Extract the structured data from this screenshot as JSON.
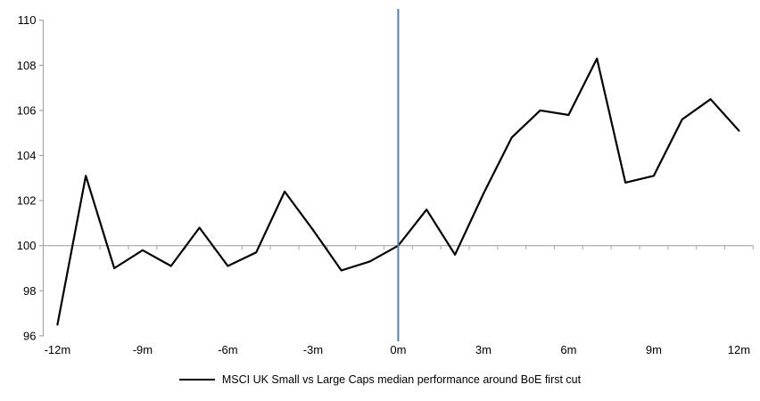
{
  "chart_data": {
    "type": "line",
    "title": "",
    "legend_label": "MSCI UK Small vs Large Caps median performance around BoE first cut",
    "legend_position": "bottom",
    "grid": false,
    "x": [
      -12,
      -11,
      -10,
      -9,
      -8,
      -7,
      -6,
      -5,
      -4,
      -3,
      -2,
      -1,
      0,
      1,
      2,
      3,
      4,
      5,
      6,
      7,
      8,
      9,
      10,
      11,
      12
    ],
    "values": [
      96.5,
      103.1,
      99.0,
      99.8,
      99.1,
      100.8,
      99.1,
      99.7,
      102.4,
      100.7,
      98.9,
      99.3,
      100.0,
      101.6,
      99.6,
      102.3,
      104.8,
      106.0,
      105.8,
      108.3,
      102.8,
      103.1,
      105.6,
      106.5,
      105.1
    ],
    "xlim": [
      -12,
      12
    ],
    "ylim": [
      96,
      110
    ],
    "y_ticks": [
      96,
      98,
      100,
      102,
      104,
      106,
      108,
      110
    ],
    "x_tick_labels": [
      {
        "month": -12,
        "label": "-12m"
      },
      {
        "month": -9,
        "label": "-9m"
      },
      {
        "month": -6,
        "label": "-6m"
      },
      {
        "month": -3,
        "label": "-3m"
      },
      {
        "month": 0,
        "label": "0m"
      },
      {
        "month": 3,
        "label": "3m"
      },
      {
        "month": 6,
        "label": "6m"
      },
      {
        "month": 9,
        "label": "9m"
      },
      {
        "month": 12,
        "label": "12m"
      }
    ],
    "baseline_value": 100,
    "event_line_x": 0,
    "colors": {
      "series": "#000000",
      "event_line": "#4f81bd",
      "axis": "#a6a6a6",
      "text": "#000000"
    }
  }
}
